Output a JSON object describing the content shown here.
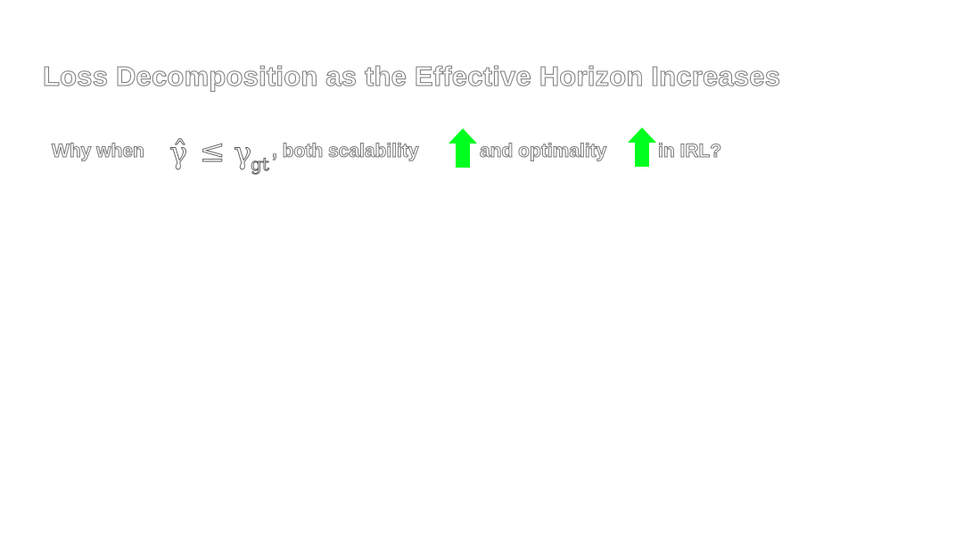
{
  "slide": {
    "title": "Loss Decomposition as the Effective Horizon Increases",
    "question": {
      "prefix": "Why when",
      "gamma_hat": "γ̂",
      "leq": "≤",
      "gamma": "γ",
      "gamma_sub": "gt",
      "mid": ", both scalability",
      "and_text": "and optimality",
      "suffix": "in IRL?"
    },
    "arrow_color": "#00ff1e"
  }
}
